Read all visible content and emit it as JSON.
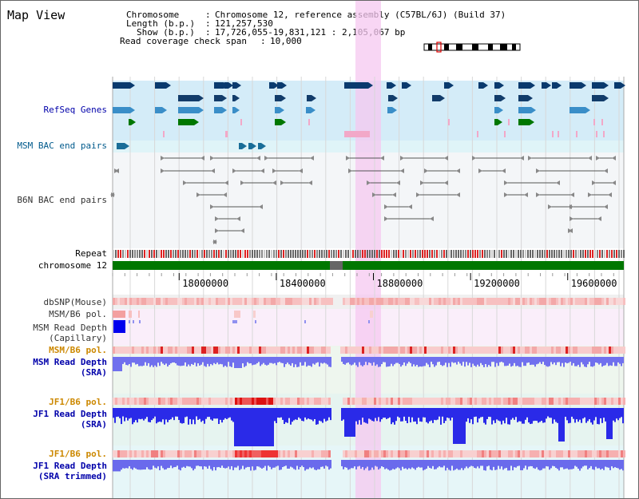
{
  "page": {
    "title": "Map View"
  },
  "info": {
    "chromosome_key": "Chromosome",
    "chromosome_val": "Chromosome 12, reference assembly (C57BL/6J) (Build 37)",
    "length_key": "Length (b.p.)",
    "length_val": "121,257,530",
    "show_key": "Show (b.p.)",
    "show_val": "17,726,055-19,831,121 : 2,105,067 bp",
    "coverage_key": "Read coverage check span",
    "coverage_val": "10,000",
    "sep": ":"
  },
  "tracks": {
    "refseq": "RefSeq Genes",
    "msm_bac": "MSM BAC end pairs",
    "b6n_bac": "B6N BAC end pairs",
    "repeat": "Repeat",
    "chromosome": "chromosome 12",
    "dbsnp": "dbSNP(Mouse)",
    "msm_b6_pol": "MSM/B6 pol.",
    "msm_depth_1": "MSM Read Depth",
    "msm_depth_2": "(Capillary)",
    "msm_b6_pol_gold": "MSM/B6 pol.",
    "msm_sra_1": "MSM Read Depth",
    "msm_sra_2": "(SRA)",
    "jf1_b6_pol": "JF1/B6 pol.",
    "jf1_sra_1": "JF1 Read Depth",
    "jf1_sra_2": "(SRA)",
    "jf1_b6_pol_2": "JF1/B6 pol.",
    "jf1_trim_1": "JF1 Read Depth",
    "jf1_trim_2": "(SRA trimmed)"
  },
  "axis": {
    "ticks": [
      "18000000",
      "18400000",
      "18800000",
      "19200000",
      "19600000"
    ],
    "tick_values": [
      18000000,
      18400000,
      18800000,
      19200000,
      19600000
    ],
    "range": [
      17726055,
      19831121
    ]
  },
  "colors": {
    "highlight": "#f5c8f0",
    "refseq_bg": "#d4ecf8",
    "msm_bac_bg": "#dff4f8",
    "gene_dark": "#0a3a6e",
    "gene_mid": "#3a8ec8",
    "gene_green": "#007700",
    "chrom_green": "#007700",
    "depth_blue": "#0000ee",
    "pol_red": "#dd0000"
  }
}
